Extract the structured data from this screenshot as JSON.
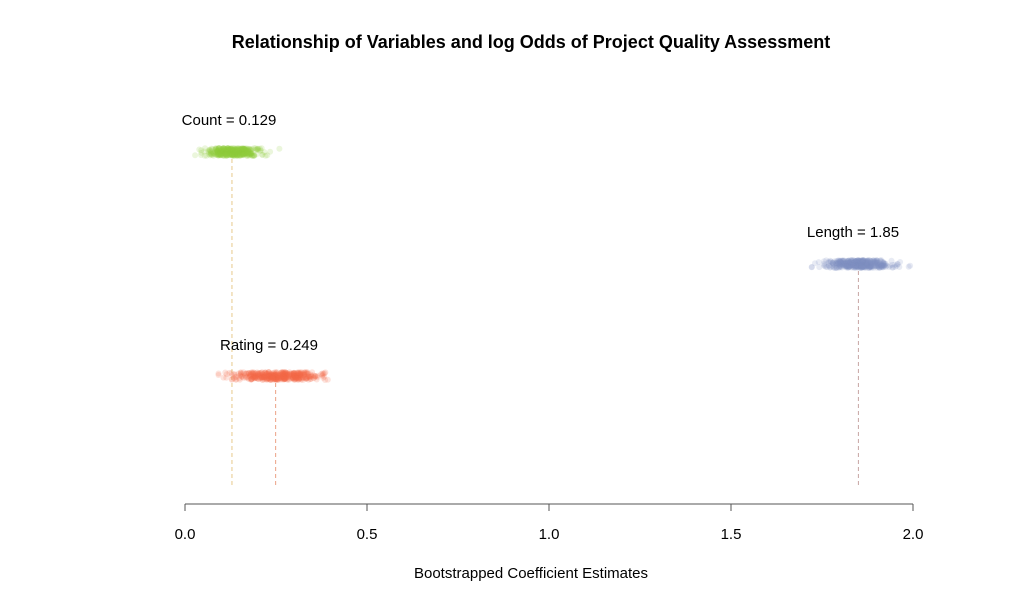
{
  "chart_data": {
    "type": "scatter",
    "title": "Relationship of Variables and log Odds of Project Quality Assessment",
    "xlabel": "Bootstrapped Coefficient Estimates",
    "ylabel": "",
    "xlim": [
      0,
      2
    ],
    "x_ticks": [
      "0.0",
      "0.5",
      "1.0",
      "1.5",
      "2.0"
    ],
    "x_tick_values": [
      0,
      0.5,
      1.0,
      1.5,
      2.0
    ],
    "grid": false,
    "legend": "none",
    "series": [
      {
        "name": "Count",
        "label": "Count = 0.129",
        "estimate": 0.129,
        "range": [
          0.0,
          0.26
        ],
        "spread": 0.035,
        "color": "#8ecf3c",
        "line_color": "#e6c98c"
      },
      {
        "name": "Length",
        "label": "Length = 1.85",
        "estimate": 1.85,
        "range": [
          1.72,
          2.0
        ],
        "spread": 0.045,
        "color": "#7f8fc2",
        "line_color": "#c7a6a3"
      },
      {
        "name": "Rating",
        "label": "Rating = 0.249",
        "estimate": 0.249,
        "range": [
          0.04,
          0.45
        ],
        "spread": 0.06,
        "color": "#f26b4a",
        "line_color": "#eca286"
      }
    ]
  }
}
